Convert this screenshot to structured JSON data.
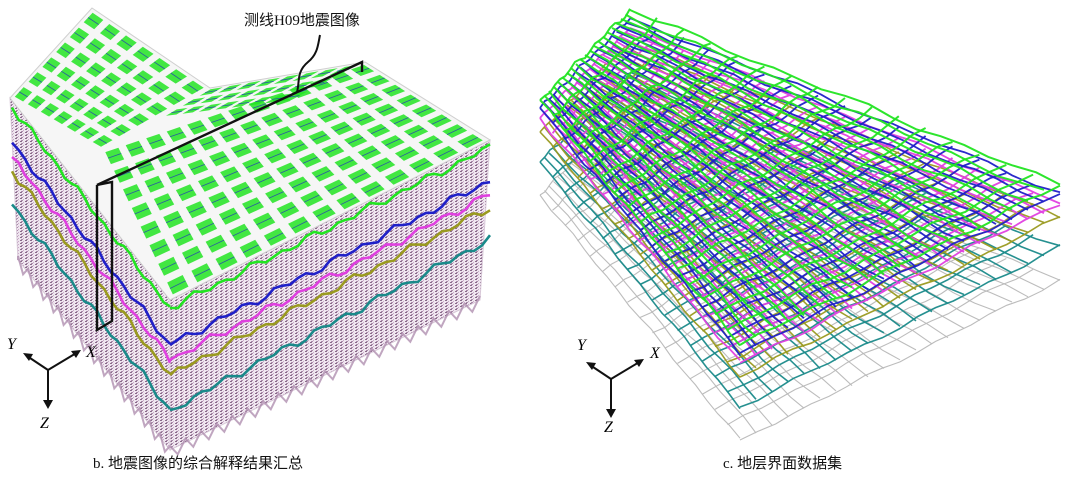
{
  "panel_b": {
    "callout_label": "测线H09地震图像",
    "axes": {
      "x": "X",
      "y": "Y",
      "z": "Z"
    },
    "caption": "b. 地震图像的综合解释结果汇总"
  },
  "panel_c": {
    "axes": {
      "x": "X",
      "y": "Y",
      "z": "Z"
    },
    "caption": "c. 地层界面数据集"
  },
  "colors": {
    "horizon_1": "#22e422",
    "horizon_2": "#2020c8",
    "horizon_3": "#e040e0",
    "horizon_4": "#9a9a20",
    "horizon_5": "#1a8a8a",
    "horizon_6": "#b8b8b8",
    "callout": "#111111"
  }
}
